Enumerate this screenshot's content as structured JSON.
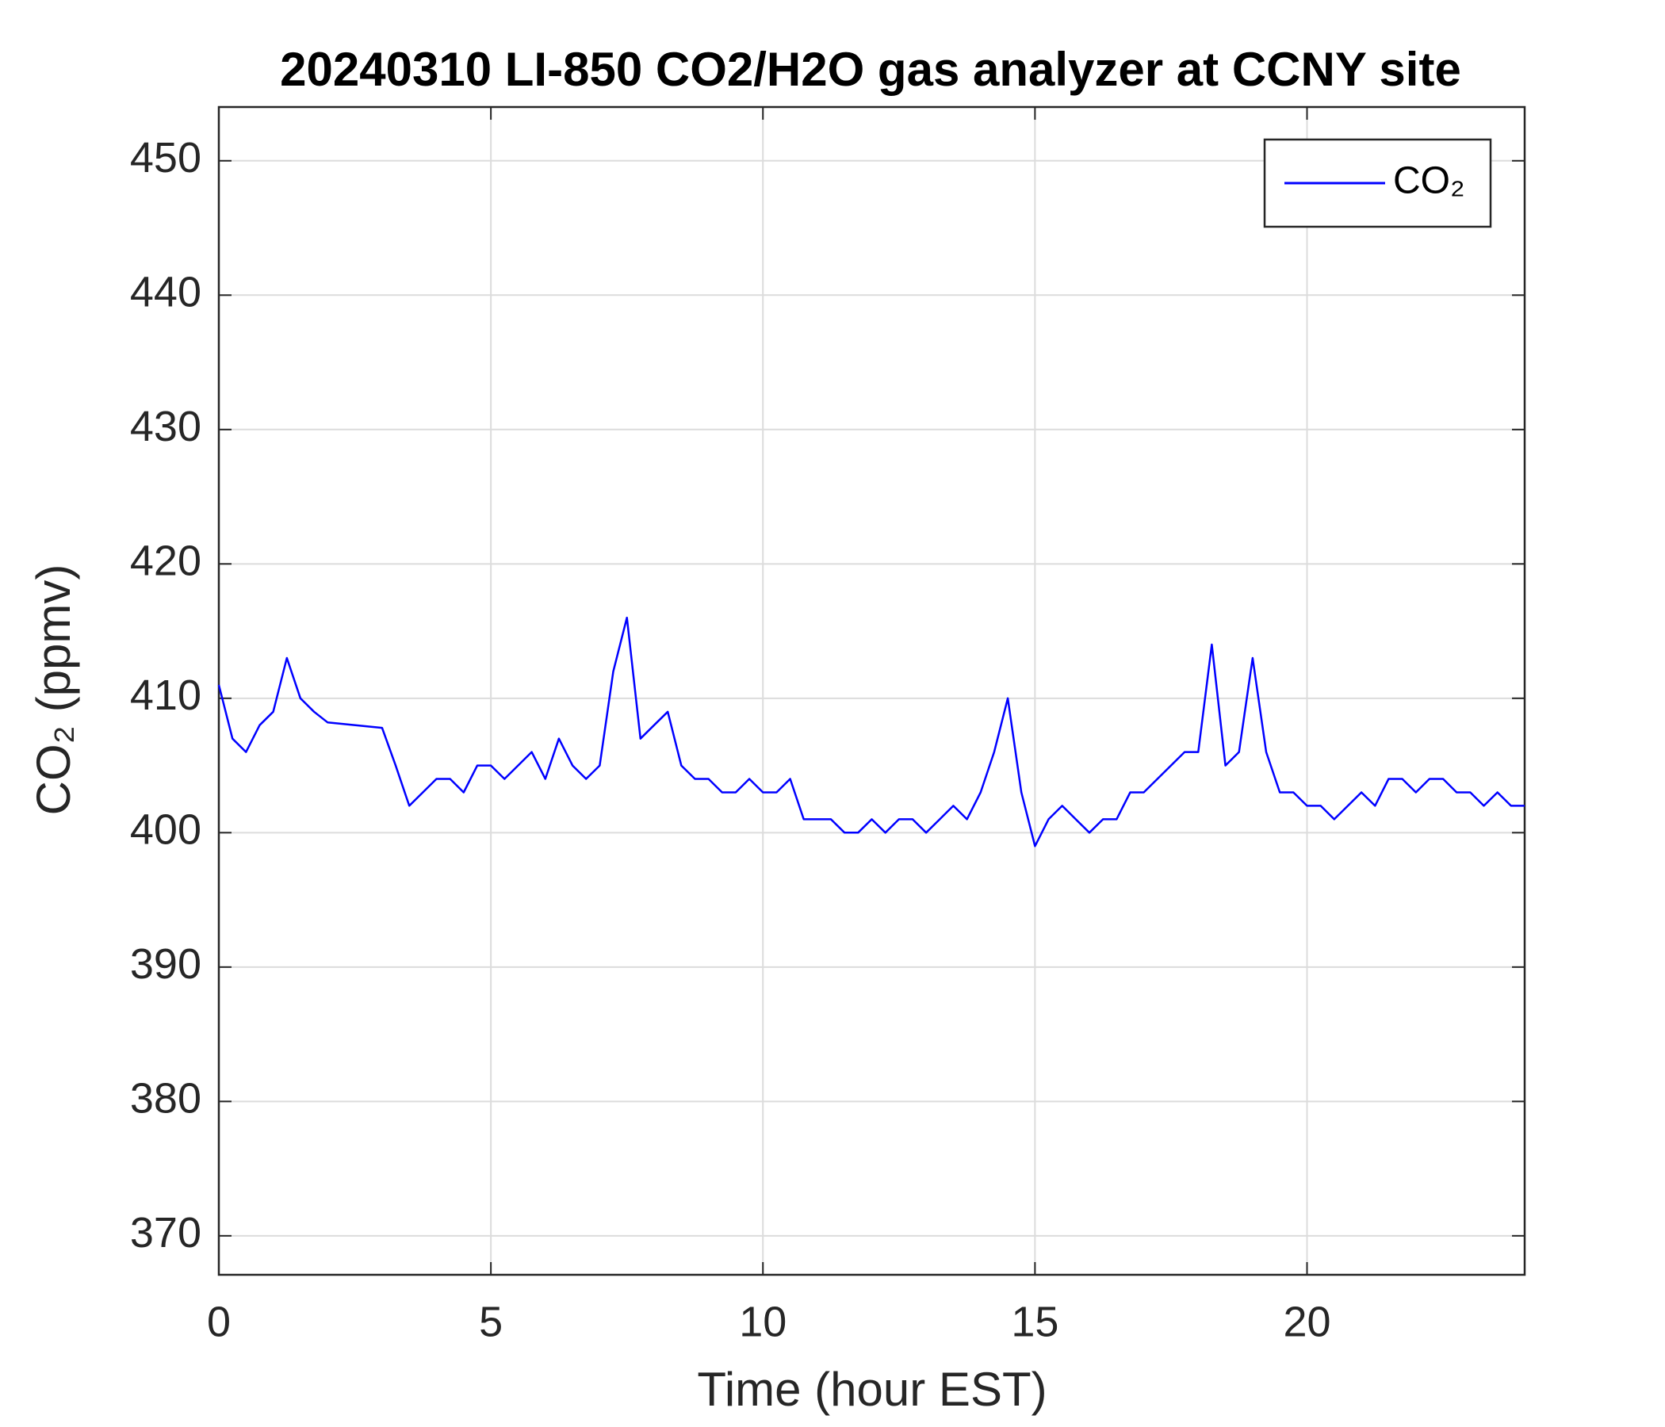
{
  "chart_data": {
    "type": "line",
    "title": "20240310 LI-850 CO2/H2O gas analyzer at CCNY site",
    "x_label": "Time (hour EST)",
    "y_label": "CO₂ (ppmv)",
    "xlim": [
      0,
      24
    ],
    "xticks": [
      0,
      5,
      10,
      15,
      20
    ],
    "ylim": [
      367.1,
      454.0
    ],
    "yticks": [
      370,
      380,
      390,
      400,
      410,
      420,
      430,
      440,
      450
    ],
    "grid": true,
    "legend": "upper right",
    "x": [
      0,
      0.25,
      0.5,
      0.75,
      1.0,
      1.25,
      1.5,
      1.75,
      2.0,
      3.0,
      3.25,
      3.5,
      3.75,
      4.0,
      4.25,
      4.5,
      4.75,
      5.0,
      5.25,
      5.5,
      5.75,
      6.0,
      6.25,
      6.5,
      6.75,
      7.0,
      7.25,
      7.5,
      7.75,
      8.0,
      8.25,
      8.5,
      8.75,
      9.0,
      9.25,
      9.5,
      9.75,
      10.0,
      10.25,
      10.5,
      10.75,
      11.0,
      11.25,
      11.5,
      11.75,
      12.0,
      12.25,
      12.5,
      12.75,
      13.0,
      13.25,
      13.5,
      13.75,
      14.0,
      14.25,
      14.5,
      14.75,
      15.0,
      15.25,
      15.5,
      15.75,
      16.0,
      16.25,
      16.5,
      16.75,
      17.0,
      17.25,
      17.5,
      17.75,
      18.0,
      18.25,
      18.5,
      18.75,
      19.0,
      19.25,
      19.5,
      19.75,
      20.0,
      20.25,
      20.5,
      20.75,
      21.0,
      21.25,
      21.5,
      21.75,
      22.0,
      22.25,
      22.5,
      22.75,
      23.0,
      23.25,
      23.5,
      23.75,
      24.0
    ],
    "series": [
      {
        "name": "CO₂",
        "color": "#0000ff",
        "values": [
          411,
          407,
          406,
          408,
          409,
          413,
          410,
          409,
          408.2,
          407.8,
          405,
          402,
          403,
          404,
          404,
          403,
          405,
          405,
          404,
          405,
          406,
          404,
          407,
          405,
          404,
          405,
          412,
          416,
          407,
          408,
          409,
          405,
          404,
          404,
          403,
          403,
          404,
          403,
          403,
          404,
          401,
          401,
          401,
          400,
          400,
          401,
          400,
          401,
          401,
          400,
          401,
          402,
          401,
          403,
          406,
          410,
          403,
          399,
          401,
          402,
          401,
          400,
          401,
          401,
          403,
          403,
          404,
          405,
          406,
          406,
          414,
          405,
          406,
          413,
          406,
          403,
          403,
          402,
          402,
          401,
          402,
          403,
          402,
          404,
          404,
          403,
          404,
          404,
          403,
          403,
          402,
          403,
          402,
          402
        ]
      }
    ]
  }
}
